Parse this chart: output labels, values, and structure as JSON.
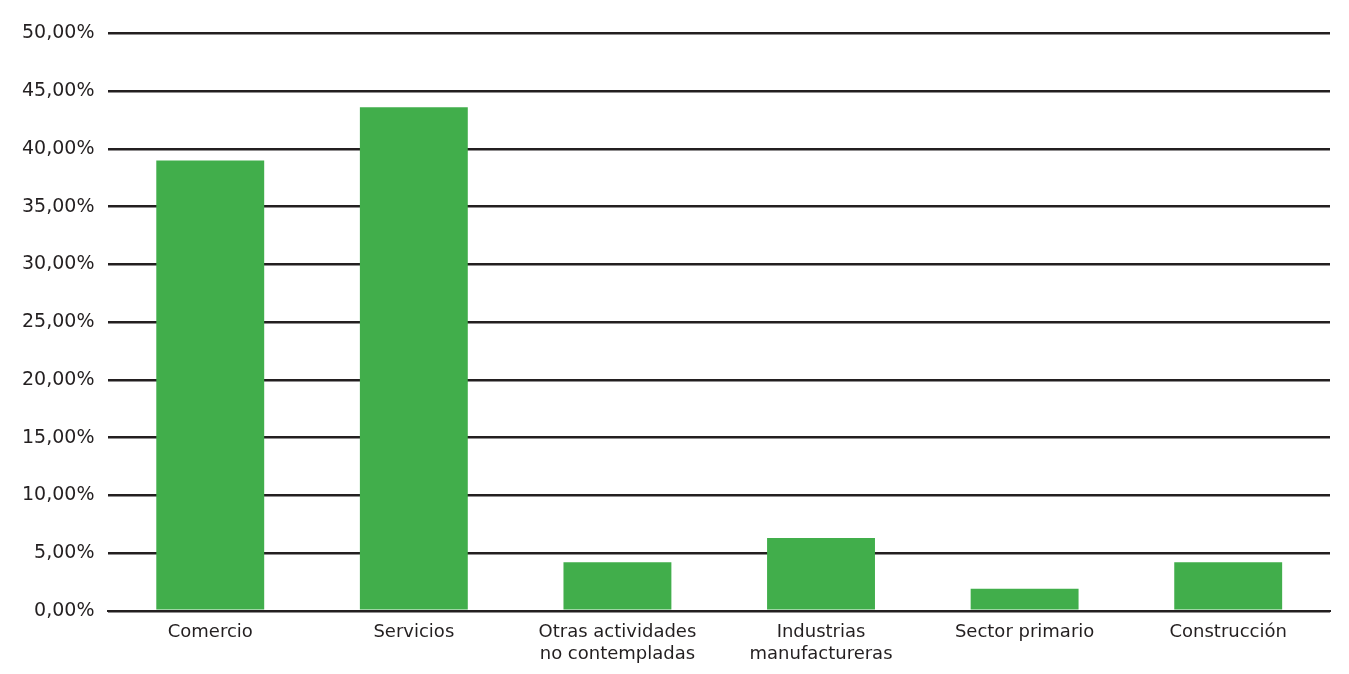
{
  "chart_data": {
    "type": "bar",
    "categories": [
      "Comercio",
      "Servicios",
      "Otras actividades\nno contempladas",
      "Industrias\nmanufactureras",
      "Sector primario",
      "Construcción"
    ],
    "values": [
      39.0,
      43.6,
      4.2,
      6.3,
      1.9,
      4.2
    ],
    "color": "#41ae4b",
    "ylim": [
      0,
      50
    ],
    "yticks": [
      {
        "value": 0,
        "label": "0,00%"
      },
      {
        "value": 5,
        "label": "5,00%"
      },
      {
        "value": 10,
        "label": "10,00%"
      },
      {
        "value": 15,
        "label": "15,00%"
      },
      {
        "value": 20,
        "label": "20,00%"
      },
      {
        "value": 25,
        "label": "25,00%"
      },
      {
        "value": 30,
        "label": "30,00%"
      },
      {
        "value": 35,
        "label": "35,00%"
      },
      {
        "value": 40,
        "label": "40,00%"
      },
      {
        "value": 45,
        "label": "45,00%"
      },
      {
        "value": 50,
        "label": "50,00%"
      }
    ],
    "grid": "y"
  }
}
